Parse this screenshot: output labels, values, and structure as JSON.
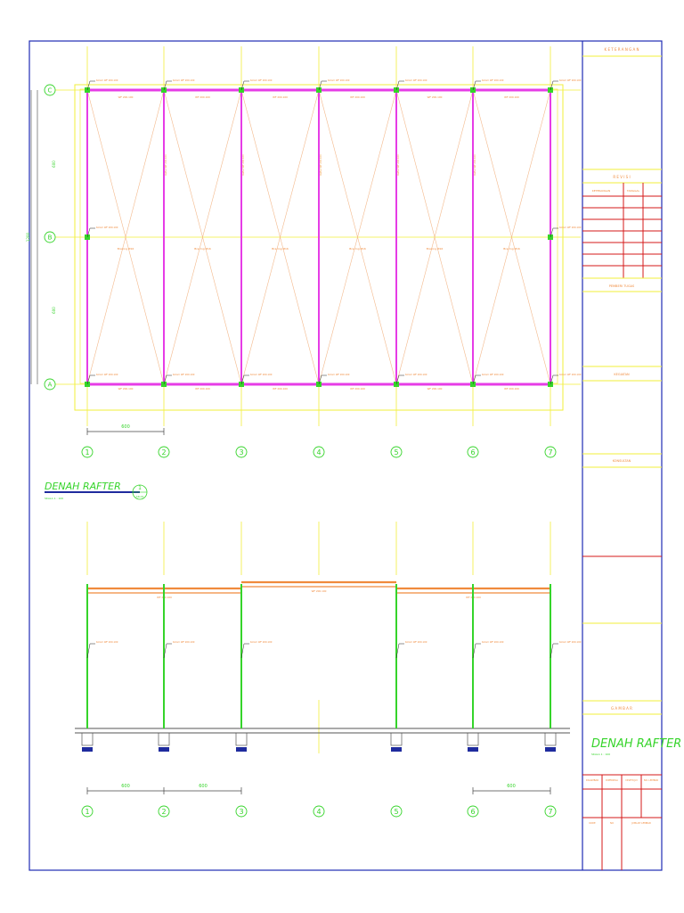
{
  "grid_columns": [
    "1",
    "2",
    "3",
    "4",
    "5",
    "6",
    "7"
  ],
  "grid_rows": [
    "C",
    "B",
    "A"
  ],
  "plan": {
    "title": "DENAH RAFTER",
    "scale_note": "SKALA 1 : 100",
    "callout_number": "1",
    "callout_sheet": "AR-01",
    "dim_bay": "600",
    "dim_total_vertical": "1200",
    "dim_upper_span": "600",
    "dim_lower_span": "600",
    "column_label": "Kolom WF 200.100",
    "beam_label": "WF 200.100",
    "bracing_label": "Bracing Ø16",
    "rafter_label": "Rafter WF 200.100"
  },
  "section": {
    "dim_1": "600",
    "dim_2": "600",
    "dim_3": "600",
    "column_label": "Kolom WF 200.100",
    "beam_label": "WF 200.100"
  },
  "title_block": {
    "keterangan": "K E T E R A N G A N",
    "revisi": "R E V I S I",
    "revisi_col1": "KETERANGAN",
    "revisi_col2": "TANGGAL",
    "pemberi_tugas": "PEMBERI TUGAS",
    "kegiatan": "KEGIATAN",
    "konsultan": "KONSULTAN",
    "gambar": "G A M B A R",
    "drawing_title": "DENAH RAFTER",
    "drawing_scale": "SKALA 1 : 100",
    "row1": [
      "DIGAMBAR",
      "DIPERIKSA",
      "DISETUJUI",
      "NO. LEMBAR"
    ],
    "row2": [
      "KODE",
      "NO",
      "JUMLAH LEMBAR"
    ]
  },
  "colors": {
    "frame": "#1f2bb5",
    "magenta": "#e63ce6",
    "yellow": "#f2ef3a",
    "green": "#35d42a",
    "orange": "#f08a3c",
    "red": "#d41a1a",
    "bracing": "#f3b98c",
    "dark_blue": "#1f2b9e"
  }
}
